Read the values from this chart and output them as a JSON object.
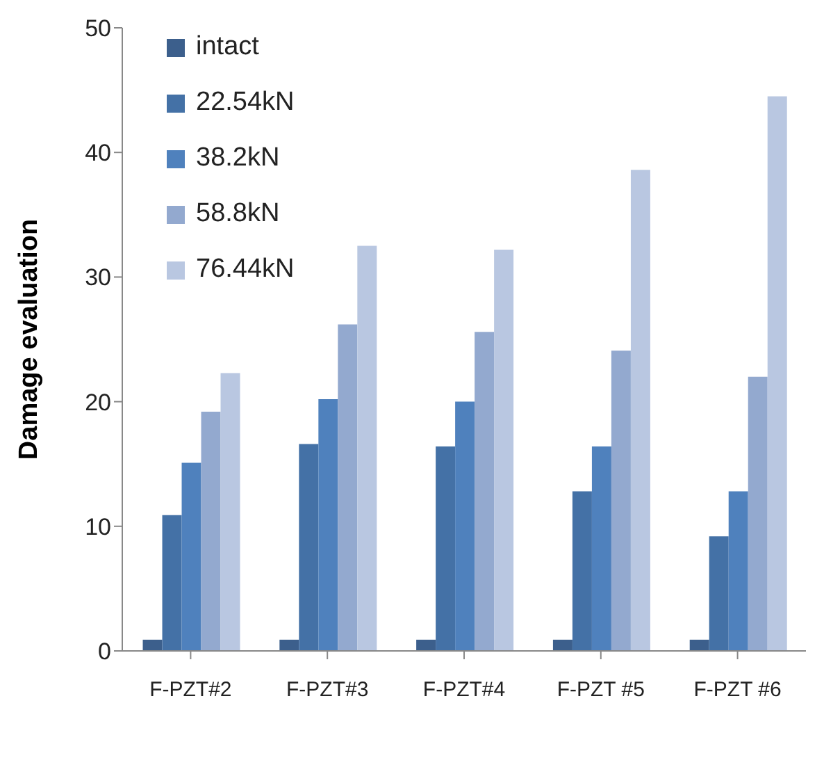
{
  "chart_data": {
    "type": "bar",
    "ylabel": "Damage evaluation",
    "categories": [
      "F-PZT#2",
      "F-PZT#3",
      "F-PZT#4",
      "F-PZT #5",
      "F-PZT #6"
    ],
    "series": [
      {
        "name": "intact",
        "color": "#3c5f8c",
        "values": [
          0.9,
          0.9,
          0.9,
          0.9,
          0.9
        ]
      },
      {
        "name": "22.54kN",
        "color": "#4471a6",
        "values": [
          10.9,
          16.6,
          16.4,
          12.8,
          9.2
        ]
      },
      {
        "name": "38.2kN",
        "color": "#4f81bd",
        "values": [
          15.1,
          20.2,
          20.0,
          16.4,
          12.8
        ]
      },
      {
        "name": "58.8kN",
        "color": "#93a9cf",
        "values": [
          19.2,
          26.2,
          25.6,
          24.1,
          22.0
        ]
      },
      {
        "name": "76.44kN",
        "color": "#b9c7e1",
        "values": [
          22.3,
          32.5,
          32.2,
          38.6,
          44.5
        ]
      }
    ],
    "ylim": [
      0,
      50
    ],
    "yticks": [
      0,
      10,
      20,
      30,
      40,
      50
    ],
    "grid": false,
    "legend": "top left"
  }
}
